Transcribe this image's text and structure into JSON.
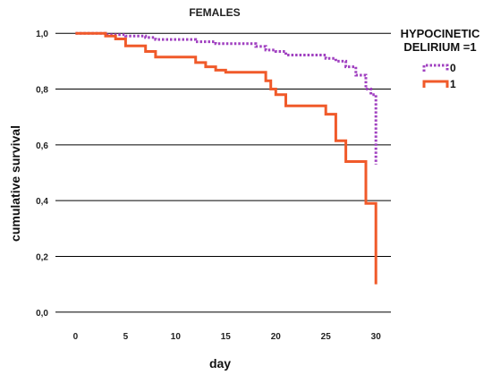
{
  "chart_data": {
    "type": "line",
    "title": "FEMALES",
    "xlabel": "day",
    "ylabel": "cumulative survival",
    "xlim": [
      -2,
      31.5
    ],
    "ylim": [
      -0.02,
      1.02
    ],
    "x_ticks": [
      0,
      5,
      10,
      15,
      20,
      25,
      30
    ],
    "y_ticks": [
      0.0,
      0.2,
      0.4,
      0.6,
      0.8,
      1.0
    ],
    "y_tick_labels": [
      "0,0",
      "0,2",
      "0,4",
      "0,6",
      "0,8",
      "1,0"
    ],
    "gridlines": "horizontal",
    "legend": {
      "title_lines": [
        "HYPOCINETIC",
        "DELIRIUM =1"
      ],
      "placement": "top-right"
    },
    "series": [
      {
        "name": "0",
        "style": "dotted",
        "color": "#a040c0",
        "steps": [
          [
            0,
            1.0
          ],
          [
            3,
            0.995
          ],
          [
            5,
            0.99
          ],
          [
            7,
            0.985
          ],
          [
            8,
            0.978
          ],
          [
            12,
            0.97
          ],
          [
            14,
            0.963
          ],
          [
            18,
            0.953
          ],
          [
            19,
            0.94
          ],
          [
            20,
            0.935
          ],
          [
            21,
            0.922
          ],
          [
            25,
            0.91
          ],
          [
            26,
            0.9
          ],
          [
            27,
            0.88
          ],
          [
            28,
            0.85
          ],
          [
            29,
            0.8
          ],
          [
            29.5,
            0.78
          ],
          [
            30,
            0.53
          ]
        ]
      },
      {
        "name": "1",
        "style": "solid",
        "color": "#f05a2a",
        "steps": [
          [
            0,
            1.0
          ],
          [
            3,
            0.99
          ],
          [
            4,
            0.98
          ],
          [
            5,
            0.955
          ],
          [
            7,
            0.935
          ],
          [
            8,
            0.915
          ],
          [
            12,
            0.895
          ],
          [
            13,
            0.88
          ],
          [
            14,
            0.868
          ],
          [
            15,
            0.86
          ],
          [
            19,
            0.83
          ],
          [
            19.5,
            0.8
          ],
          [
            20,
            0.78
          ],
          [
            21,
            0.74
          ],
          [
            25,
            0.71
          ],
          [
            26,
            0.615
          ],
          [
            27,
            0.54
          ],
          [
            29,
            0.39
          ],
          [
            30,
            0.1
          ]
        ]
      }
    ]
  }
}
